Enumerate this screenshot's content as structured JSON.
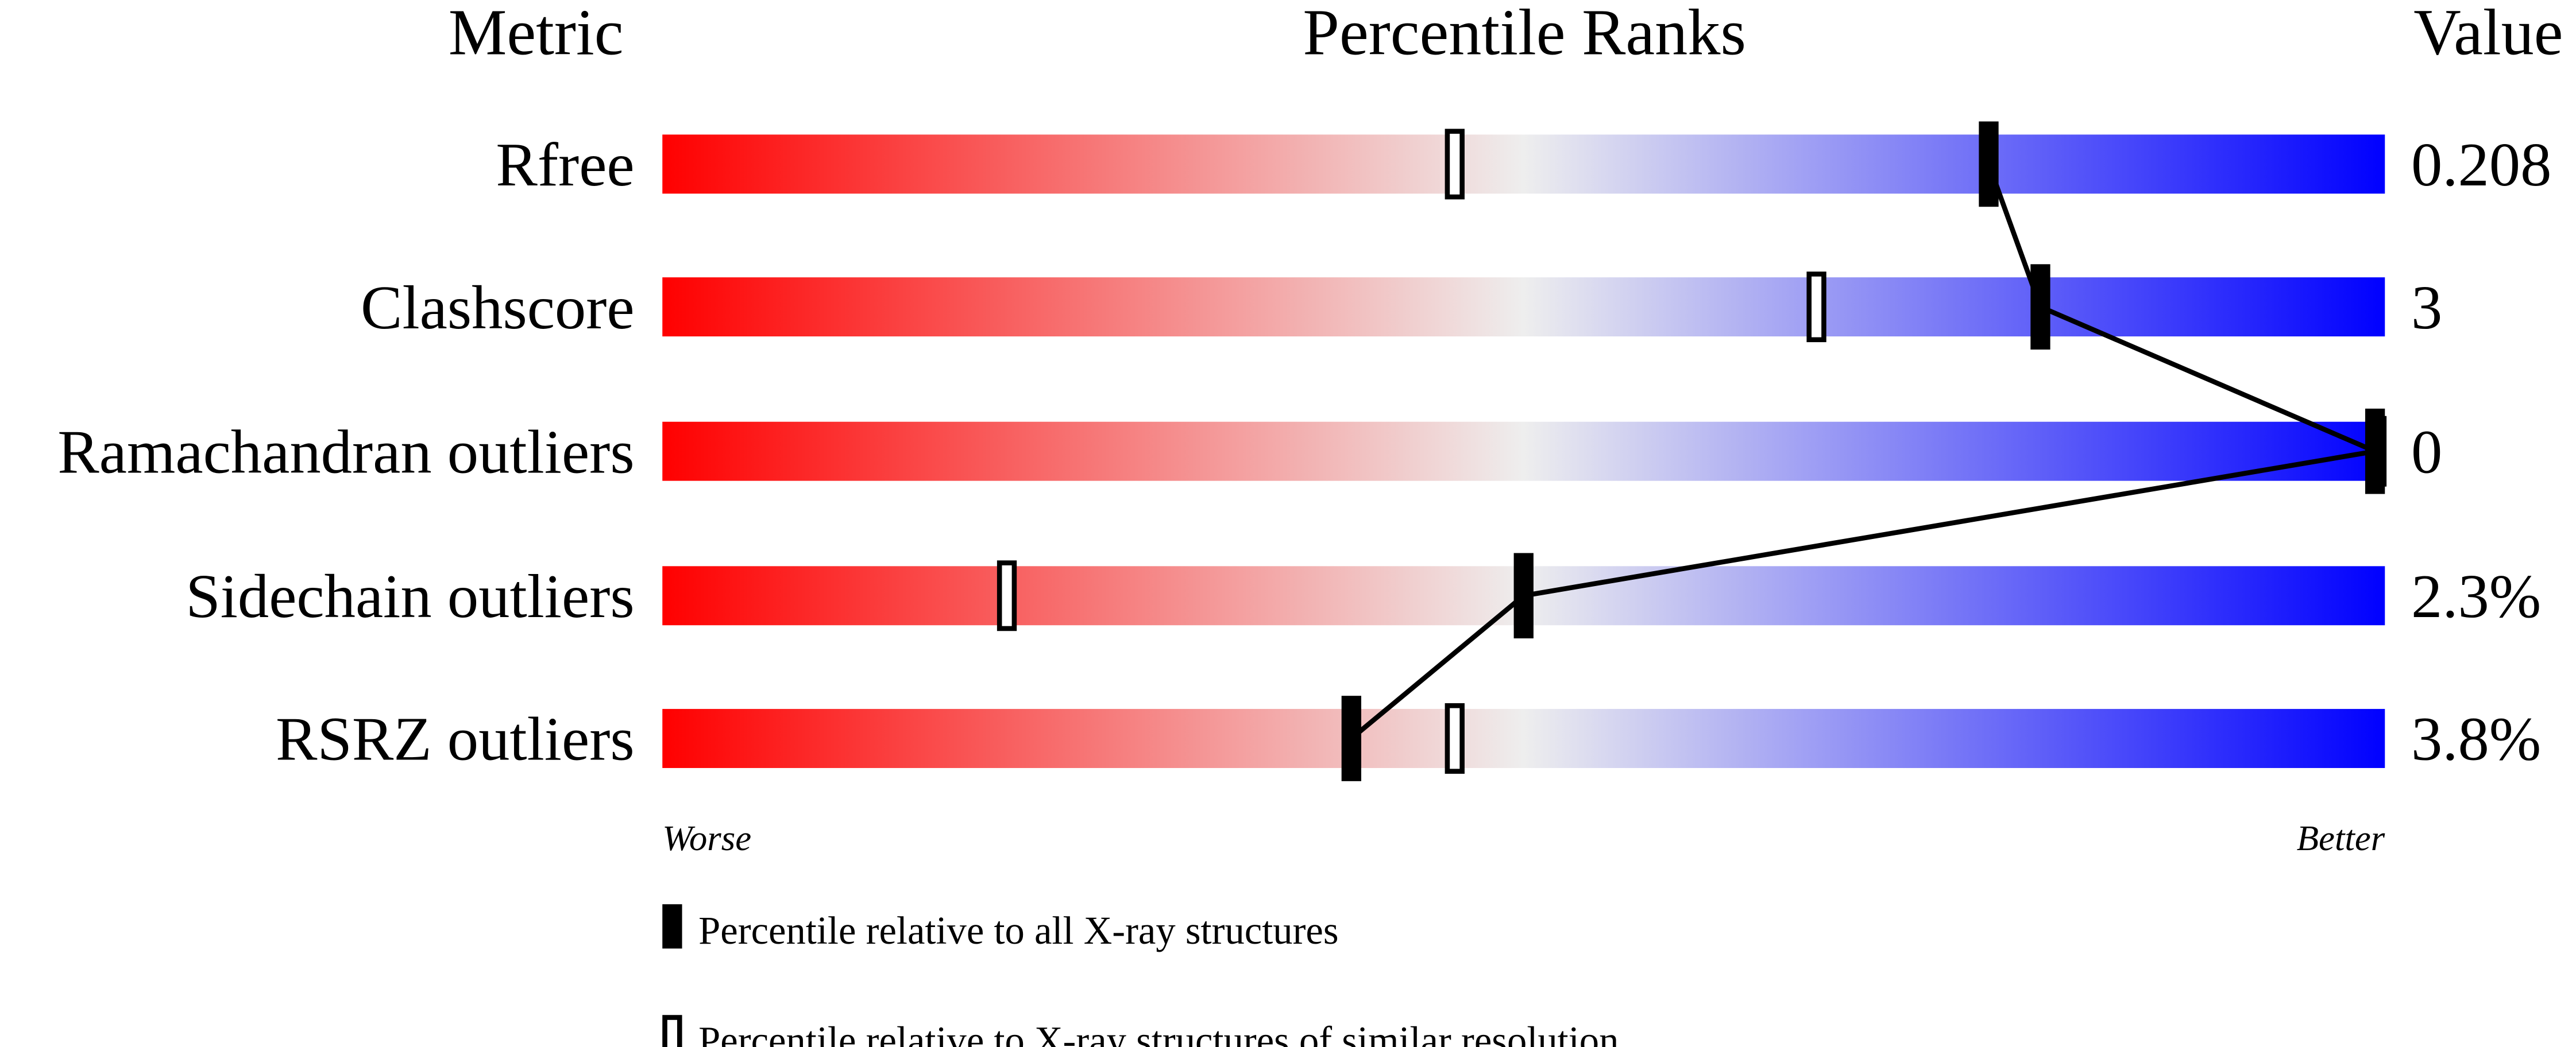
{
  "chart_data": {
    "type": "percentile-slider",
    "headers": {
      "metric": "Metric",
      "ranks": "Percentile Ranks",
      "value": "Value"
    },
    "xlim": [
      0,
      100
    ],
    "axis_labels": {
      "left": "Worse",
      "right": "Better"
    },
    "colors": {
      "worse": "#ff0000",
      "middle": "#eeeeee",
      "better": "#0000ff",
      "marker": "#000000"
    },
    "metrics": [
      {
        "name": "Rfree",
        "value": "0.208",
        "percentile_all": 77,
        "percentile_similar": 46
      },
      {
        "name": "Clashscore",
        "value": "3",
        "percentile_all": 80,
        "percentile_similar": 67
      },
      {
        "name": "Ramachandran outliers",
        "value": "0",
        "percentile_all": 100,
        "percentile_similar": 100
      },
      {
        "name": "Sidechain outliers",
        "value": "2.3%",
        "percentile_all": 50,
        "percentile_similar": 20
      },
      {
        "name": "RSRZ outliers",
        "value": "3.8%",
        "percentile_all": 40,
        "percentile_similar": 46
      }
    ],
    "legend": [
      {
        "marker": "filled",
        "label": "Percentile relative to all X-ray structures"
      },
      {
        "marker": "open",
        "label": "Percentile relative to X-ray structures of similar resolution"
      }
    ]
  }
}
